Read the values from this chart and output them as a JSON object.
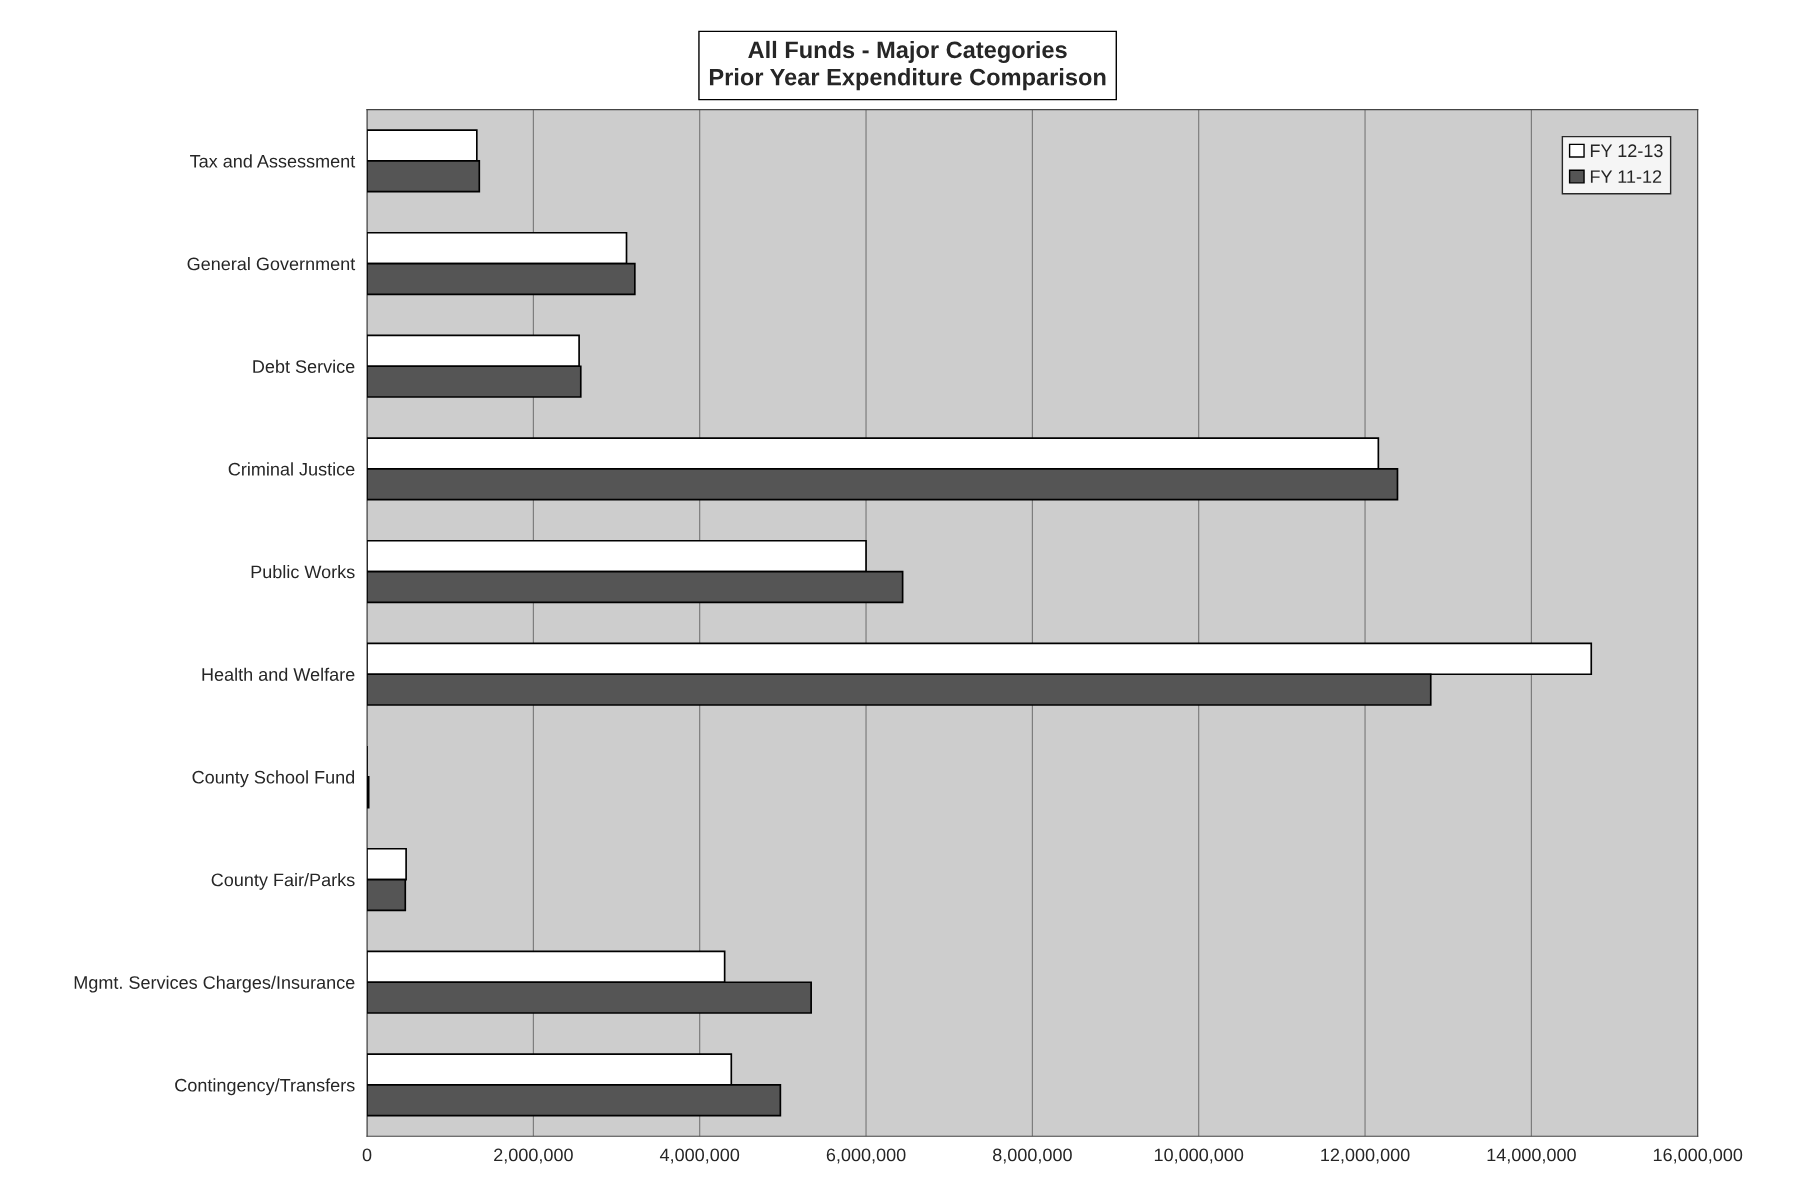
{
  "chart_data": {
    "type": "bar",
    "orientation": "horizontal",
    "title": "All Funds - Major Categories\nPrior Year Expenditure Comparison",
    "categories": [
      "Tax and Assessment",
      "General Government",
      "Debt Service",
      "Criminal Justice",
      "Public Works",
      "Health and Welfare",
      "County School Fund",
      "County Fair/Parks",
      "Mgmt. Services Charges/Insurance",
      "Contingency/Transfers"
    ],
    "series": [
      {
        "name": "FY 12-13",
        "color": "#ffffff",
        "values": [
          1320000,
          3120000,
          2550000,
          12160000,
          6000000,
          14720000,
          null,
          470000,
          4300000,
          4380000
        ]
      },
      {
        "name": "FY 11-12",
        "color": "#555555",
        "values": [
          1350000,
          3220000,
          2570000,
          12390000,
          6440000,
          12790000,
          20000,
          460000,
          5340000,
          4970000
        ]
      }
    ],
    "xlim": [
      0,
      16000000
    ],
    "xticks": [
      0,
      {
        "value": 2000000,
        "label": "2,000,000"
      },
      {
        "value": 4000000,
        "label": "4,000,000"
      },
      {
        "value": 6000000,
        "label": "6,000,000"
      },
      {
        "value": 8000000,
        "label": "8,000,000"
      },
      {
        "value": 10000000,
        "label": "10,000,000"
      },
      {
        "value": 12000000,
        "label": "12,000,000"
      },
      {
        "value": 14000000,
        "label": "14,000,000"
      },
      {
        "value": 16000000,
        "label": "16,000,000"
      }
    ],
    "grid": "x",
    "legend": "top right"
  }
}
